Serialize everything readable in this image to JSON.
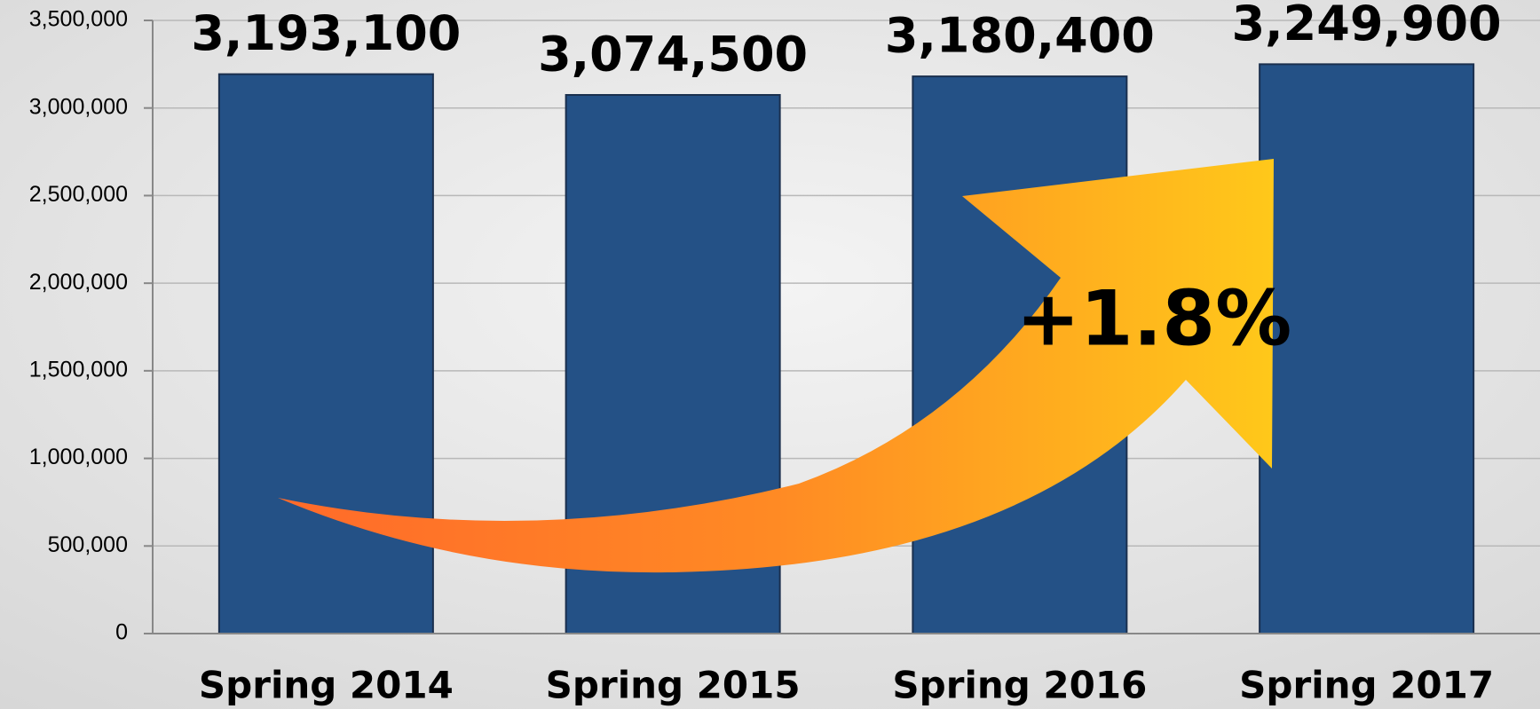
{
  "chart_data": {
    "type": "bar",
    "categories": [
      "Spring 2014",
      "Spring 2015",
      "Spring 2016",
      "Spring 2017"
    ],
    "values": [
      3193100,
      3074500,
      3180400,
      3249900
    ],
    "value_labels": [
      "3,193,100",
      "3,074,500",
      "3,180,400",
      "3,249,900"
    ],
    "color": "#245186",
    "ylim": [
      0,
      3500000
    ],
    "yticks": [
      0,
      {
        "value": 500000,
        "label": "500,000"
      },
      {
        "value": 1000000,
        "label": "1,000,000"
      },
      {
        "value": 1500000,
        "label": "1,500,000"
      },
      {
        "value": 2000000,
        "label": "2,000,000"
      },
      {
        "value": 2500000,
        "label": "2,500,000"
      },
      {
        "value": 3000000,
        "label": "3,000,000"
      },
      {
        "value": 3500000,
        "label": "3,500,000"
      }
    ],
    "grid": true,
    "annotation": "+1.8%"
  }
}
